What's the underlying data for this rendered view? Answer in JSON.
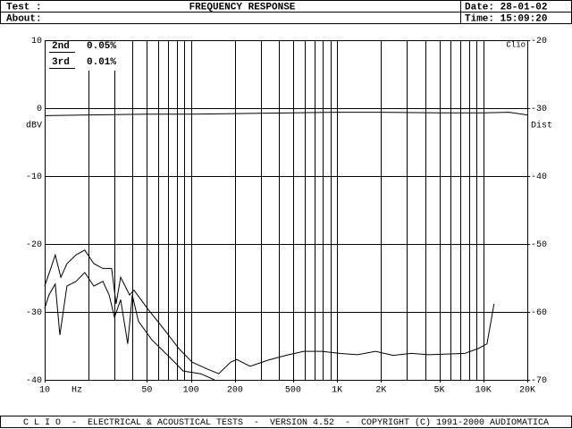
{
  "header": {
    "test_label": "Test :",
    "about_label": "About:",
    "date": "Date: 28-01-02",
    "time": "Time: 15:09:20"
  },
  "footer": "C L I O  -  ELECTRICAL & ACOUSTICAL TESTS  -  VERSION 4.52  -  COPYRIGHT (C) 1991-2000 AUDIOMATICA",
  "chart_data": {
    "type": "line",
    "title": "FREQUENCY RESPONSE",
    "x_label": "Hz",
    "y_label": "dBV",
    "y2_label": "Dist",
    "watermark": "Clio",
    "xscale": "log",
    "xlim": [
      10,
      20000
    ],
    "xticks": [
      10,
      50,
      100,
      200,
      500,
      {
        "value": 1000,
        "label": "1K"
      },
      {
        "value": 2000,
        "label": "2K"
      },
      {
        "value": 5000,
        "label": "5K"
      },
      {
        "value": 10000,
        "label": "10K"
      },
      {
        "value": 20000,
        "label": "20K"
      }
    ],
    "xgrid": [
      20,
      30,
      40,
      50,
      60,
      70,
      80,
      90,
      100,
      200,
      300,
      400,
      500,
      600,
      700,
      800,
      900,
      1000,
      2000,
      3000,
      4000,
      5000,
      6000,
      7000,
      8000,
      9000,
      10000
    ],
    "ylim": [
      -40,
      10
    ],
    "yticks": [
      -40,
      -30,
      -20,
      -10,
      0,
      10
    ],
    "y2lim": [
      -70,
      -20
    ],
    "y2ticks": [
      -70,
      -60,
      -50,
      -40,
      -30,
      -20
    ],
    "grid": true,
    "series": [
      {
        "color": "#000000",
        "x": [
          10,
          20,
          50,
          100,
          200,
          500,
          1000,
          2000,
          5000,
          10000,
          15000,
          20000
        ],
        "values": [
          -1.1,
          -1.0,
          -0.9,
          -0.9,
          -0.8,
          -0.7,
          -0.6,
          -0.6,
          -0.7,
          -0.7,
          -0.6,
          -1.0
        ]
      },
      {
        "name": "2nd",
        "legend_value": "0.05%",
        "axis": "y2",
        "color": "#000000",
        "x": [
          10,
          11,
          11.8,
          12.9,
          14.2,
          16.4,
          18.8,
          21.7,
          25,
          28.7,
          30.8,
          33.1,
          38.1,
          40.8,
          50.5,
          66.9,
          82.7,
          102,
          126,
          155,
          187,
          206,
          254,
          337,
          446,
          592,
          785,
          1040,
          1380,
          1830,
          2420,
          3210,
          4260,
          5650,
          7490,
          9220,
          10600,
          11850
        ],
        "values": [
          -56.2,
          -53.6,
          -51.6,
          -54.9,
          -52.9,
          -51.6,
          -50.9,
          -52.9,
          -53.6,
          -53.6,
          -58.8,
          -54.9,
          -57.5,
          -56.8,
          -59.5,
          -62.8,
          -65.4,
          -67.4,
          -68.3,
          -69.1,
          -67.4,
          -67.0,
          -68.0,
          -67.1,
          -66.4,
          -65.8,
          -65.8,
          -66.1,
          -66.3,
          -65.8,
          -66.4,
          -66.1,
          -66.3,
          -66.2,
          -66.1,
          -65.4,
          -64.7,
          -58.8
        ]
      },
      {
        "name": "3rd",
        "legend_value": "0.01%",
        "axis": "y2",
        "color": "#000000",
        "x": [
          10,
          10.7,
          11.8,
          12.7,
          14.2,
          16.4,
          18.8,
          21.7,
          25,
          27.6,
          30,
          33.1,
          37,
          39.7,
          43.8,
          54.1,
          71.8,
          88.6,
          117,
          145
        ],
        "values": [
          -59.5,
          -57.5,
          -55.9,
          -63.4,
          -56.2,
          -55.5,
          -54.2,
          -56.2,
          -55.5,
          -57.5,
          -60.8,
          -58.2,
          -64.7,
          -57.5,
          -61.4,
          -64.1,
          -66.7,
          -68.7,
          -69.1,
          -70
        ]
      }
    ]
  }
}
